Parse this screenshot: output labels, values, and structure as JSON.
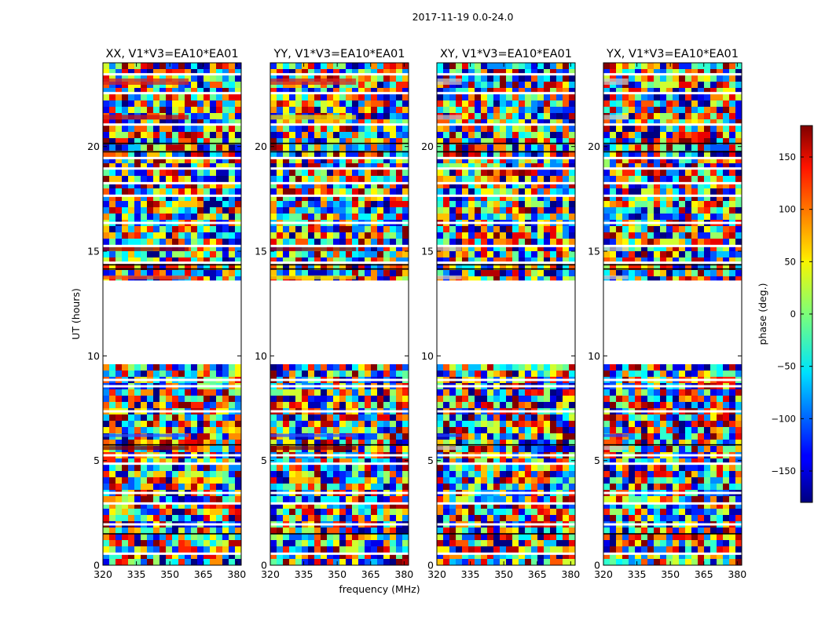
{
  "figure": {
    "suptitle": "2017-11-19 0.0-24.0"
  },
  "chart_data": {
    "type": "heatmap",
    "title": "2017-11-19 0.0-24.0",
    "xlabel": "frequency (MHz)",
    "ylabel": "UT (hours)",
    "xlim": [
      320,
      382
    ],
    "ylim": [
      0,
      24
    ],
    "xticks": [
      320,
      335,
      350,
      365,
      380
    ],
    "yticks": [
      0,
      5,
      10,
      15,
      20
    ],
    "panels": [
      {
        "title": "XX, V1*V3=EA10*EA01",
        "pol": "XX"
      },
      {
        "title": "YY, V1*V3=EA10*EA01",
        "pol": "YY"
      },
      {
        "title": "XY, V1*V3=EA10*EA01",
        "pol": "XY"
      },
      {
        "title": "YX, V1*V3=EA10*EA01",
        "pol": "YX"
      }
    ],
    "data_gaps_hours": [
      [
        9.6,
        13.6
      ]
    ],
    "blank_rows_hours": [
      0.55,
      1.95,
      2.95,
      3.45,
      4.85,
      5.25,
      7.35,
      8.55,
      8.85,
      14.45,
      15.25,
      16.35,
      17.65,
      18.25,
      18.95,
      19.45,
      21.05,
      22.55,
      23.45
    ],
    "colorbar": {
      "label": "phase (deg.)",
      "range": [
        -180,
        180
      ],
      "ticks": [
        150,
        100,
        50,
        0,
        -50,
        -100,
        -150
      ],
      "colormap": "jet"
    }
  }
}
